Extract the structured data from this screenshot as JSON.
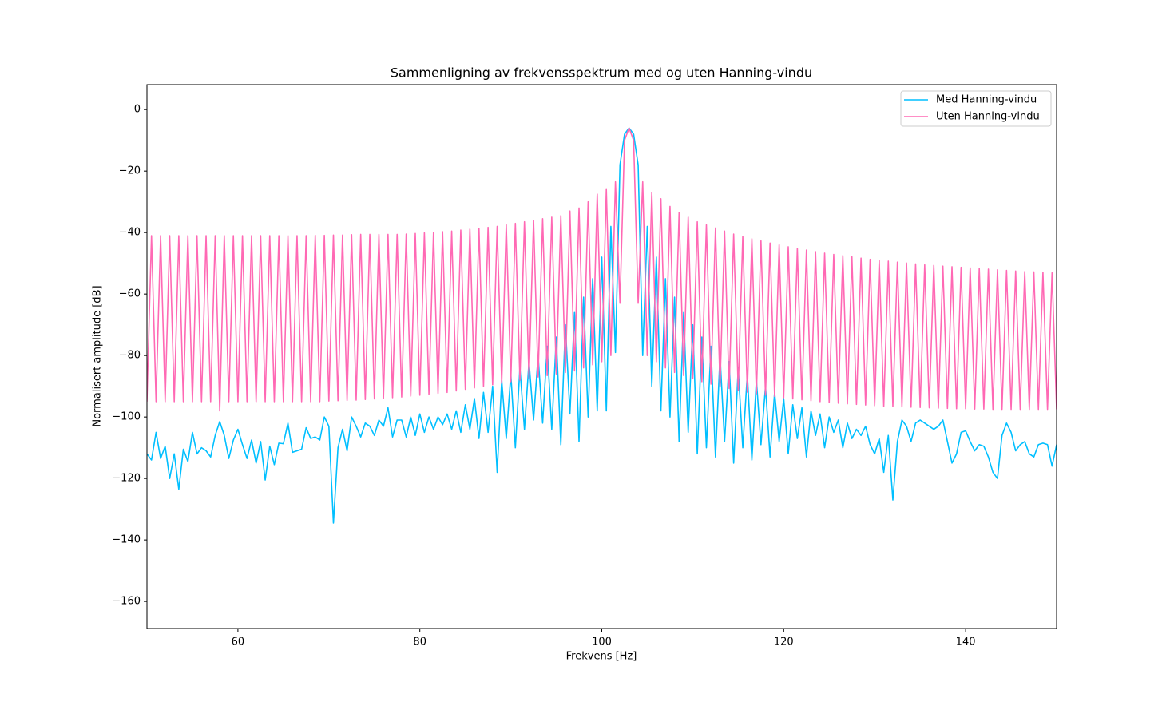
{
  "chart_data": {
    "type": "line",
    "title": "Sammenligning av frekvensspektrum med og uten Hanning-vindu",
    "xlabel": "Frekvens [Hz]",
    "ylabel": "Normalisert amplitude [dB]",
    "xlim": [
      50,
      150
    ],
    "ylim": [
      -168.8,
      8.1
    ],
    "xticks": [
      60,
      80,
      100,
      120,
      140
    ],
    "yticks": [
      0,
      {
        "value": -20,
        "label": "−20"
      },
      {
        "value": -40,
        "label": "−40"
      },
      {
        "value": -60,
        "label": "−60"
      },
      {
        "value": -80,
        "label": "−80"
      },
      {
        "value": -100,
        "label": "−100"
      },
      {
        "value": -120,
        "label": "−120"
      },
      {
        "value": -140,
        "label": "−140"
      },
      {
        "value": -160,
        "label": "−160"
      }
    ],
    "legend": "upper right",
    "x": [
      50,
      50.5,
      51,
      51.5,
      52,
      52.5,
      53,
      53.5,
      54,
      54.5,
      55,
      55.5,
      56,
      56.5,
      57,
      57.5,
      58,
      58.5,
      59,
      59.5,
      60,
      60.5,
      61,
      61.5,
      62,
      62.5,
      63,
      63.5,
      64,
      64.5,
      65,
      65.5,
      66,
      66.5,
      67,
      67.5,
      68,
      68.5,
      69,
      69.5,
      70,
      70.5,
      71,
      71.5,
      72,
      72.5,
      73,
      73.5,
      74,
      74.5,
      75,
      75.5,
      76,
      76.5,
      77,
      77.5,
      78,
      78.5,
      79,
      79.5,
      80,
      80.5,
      81,
      81.5,
      82,
      82.5,
      83,
      83.5,
      84,
      84.5,
      85,
      85.5,
      86,
      86.5,
      87,
      87.5,
      88,
      88.5,
      89,
      89.5,
      90,
      90.5,
      91,
      91.5,
      92,
      92.5,
      93,
      93.5,
      94,
      94.5,
      95,
      95.5,
      96,
      96.5,
      97,
      97.5,
      98,
      98.5,
      99,
      99.5,
      100,
      100.5,
      101,
      101.5,
      102,
      102.5,
      103,
      103.5,
      104,
      104.5,
      105,
      105.5,
      106,
      106.5,
      107,
      107.5,
      108,
      108.5,
      109,
      109.5,
      110,
      110.5,
      111,
      111.5,
      112,
      112.5,
      113,
      113.5,
      114,
      114.5,
      115,
      115.5,
      116,
      116.5,
      117,
      117.5,
      118,
      118.5,
      119,
      119.5,
      120,
      120.5,
      121,
      121.5,
      122,
      122.5,
      123,
      123.5,
      124,
      124.5,
      125,
      125.5,
      126,
      126.5,
      127,
      127.5,
      128,
      128.5,
      129,
      129.5,
      130,
      130.5,
      131,
      131.5,
      132,
      132.5,
      133,
      133.5,
      134,
      134.5,
      135,
      135.5,
      136,
      136.5,
      137,
      137.5,
      138,
      138.5,
      139,
      139.5,
      140,
      140.5,
      141,
      141.5,
      142,
      142.5,
      143,
      143.5,
      144,
      144.5,
      145,
      145.5,
      146,
      146.5,
      147,
      147.5,
      148,
      148.5,
      149,
      149.5,
      150
    ],
    "series": [
      {
        "name": "Med Hanning-vindu",
        "color": "#00bfff",
        "values": [
          -112,
          -114,
          -105,
          -113.5,
          -109.5,
          -120,
          -112,
          -123.5,
          -110.5,
          -114.5,
          -105,
          -112,
          -110,
          -111,
          -113,
          -106,
          -101.5,
          -106,
          -113.5,
          -107.5,
          -104,
          -109,
          -113.5,
          -107.5,
          -115,
          -108,
          -120.5,
          -109.5,
          -115.5,
          -108.5,
          -108.7,
          -102,
          -111.5,
          -111,
          -110.5,
          -103.5,
          -107,
          -106.5,
          -107.5,
          -100,
          -103,
          -134.5,
          -110,
          -104,
          -111,
          -100,
          -103,
          -106.5,
          -102,
          -103,
          -106,
          -101,
          -103,
          -97,
          -106.5,
          -101,
          -101,
          -106.5,
          -100,
          -106,
          -99,
          -105,
          -100,
          -104,
          -100,
          -102.5,
          -99,
          -104,
          -98,
          -105,
          -96,
          -104,
          -94,
          -107,
          -92,
          -105,
          -90,
          -118,
          -88,
          -107,
          -86,
          -110,
          -84,
          -104,
          -82,
          -101,
          -80,
          -102,
          -77,
          -104,
          -74,
          -109,
          -70,
          -99,
          -66,
          -108,
          -61,
          -100,
          -55,
          -98,
          -48,
          -98,
          -38,
          -79,
          -18,
          -8,
          -6,
          -8,
          -18,
          -80,
          -38,
          -90,
          -48,
          -98,
          -55,
          -100,
          -61,
          -108,
          -66,
          -105,
          -70,
          -112,
          -74,
          -110,
          -77,
          -113,
          -80,
          -108,
          -82,
          -115,
          -84,
          -110,
          -86,
          -114,
          -88,
          -109,
          -90,
          -113,
          -92,
          -108,
          -94,
          -112,
          -96,
          -107,
          -97,
          -113,
          -98,
          -106,
          -99,
          -110,
          -100,
          -105,
          -101,
          -110,
          -102,
          -107,
          -104,
          -106,
          -103,
          -109,
          -112,
          -107,
          -118,
          -106,
          -127,
          -108,
          -101,
          -103,
          -108,
          -102,
          -101,
          -102,
          -103,
          -104,
          -103,
          -101,
          -108,
          -115,
          -112,
          -105,
          -104.5,
          -108,
          -111,
          -109,
          -109.5,
          -113,
          -118,
          -120,
          -106,
          -102,
          -105,
          -111,
          -109,
          -108,
          -112,
          -113,
          -109,
          -108.5,
          -109,
          -116,
          -109
        ]
      },
      {
        "name": "Uten Hanning-vindu",
        "color": "#ff69b4",
        "values": [
          -95,
          -41,
          -95,
          -41,
          -95,
          -41,
          -95,
          -41,
          -95,
          -41,
          -95,
          -41,
          -95,
          -41,
          -95,
          -41,
          -98,
          -41,
          -95,
          -41,
          -95,
          -41,
          -95,
          -41,
          -95,
          -41,
          -95,
          -41,
          -95,
          -41,
          -95,
          -41,
          -95,
          -41,
          -95,
          -41,
          -95,
          -40.9,
          -95,
          -40.9,
          -94.8,
          -40.8,
          -94.7,
          -40.8,
          -94.6,
          -40.7,
          -94.5,
          -40.6,
          -94.3,
          -40.6,
          -94.1,
          -40.6,
          -93.9,
          -40.6,
          -93.7,
          -40.6,
          -93.5,
          -40.5,
          -93.2,
          -40.3,
          -92.9,
          -40.1,
          -92.6,
          -39.9,
          -92.3,
          -39.7,
          -92,
          -39.5,
          -91.5,
          -39.2,
          -91,
          -38.9,
          -90.5,
          -38.6,
          -90,
          -38.3,
          -89.5,
          -38,
          -89,
          -37.5,
          -88.5,
          -37,
          -88,
          -36.5,
          -87.5,
          -36,
          -87,
          -35.5,
          -86.5,
          -35,
          -86,
          -34.5,
          -85.5,
          -33,
          -85,
          -32,
          -84,
          -30,
          -83,
          -27.5,
          -82,
          -26,
          -80,
          -23.5,
          -63,
          -10,
          -6,
          -10,
          -63,
          -23.5,
          -80,
          -27,
          -82,
          -29,
          -84,
          -31.5,
          -85.5,
          -33.5,
          -86.5,
          -35,
          -87.5,
          -36.5,
          -88.5,
          -37.5,
          -89.3,
          -38.5,
          -90,
          -39.5,
          -90.7,
          -40.5,
          -91.3,
          -41.3,
          -91.9,
          -42,
          -92.4,
          -42.7,
          -92.9,
          -43.4,
          -93.3,
          -44,
          -93.7,
          -44.6,
          -94.1,
          -45.2,
          -94.4,
          -45.7,
          -94.7,
          -46.2,
          -95,
          -46.7,
          -95.3,
          -47.1,
          -95.5,
          -47.5,
          -95.7,
          -47.9,
          -95.9,
          -48.3,
          -96.1,
          -48.7,
          -96.3,
          -49,
          -96.5,
          -49.3,
          -96.6,
          -49.6,
          -96.7,
          -49.9,
          -96.8,
          -50.2,
          -96.9,
          -50.5,
          -97,
          -50.7,
          -97.1,
          -50.9,
          -97.2,
          -51.1,
          -97.3,
          -51.3,
          -97.3,
          -51.5,
          -97.4,
          -51.7,
          -97.4,
          -51.9,
          -97.5,
          -52.1,
          -97.5,
          -52.3,
          -97.5,
          -52.5,
          -97.5,
          -52.7,
          -97.5,
          -52.8,
          -97.5,
          -53,
          -97.5,
          -53.1,
          -97.5
        ]
      }
    ]
  }
}
